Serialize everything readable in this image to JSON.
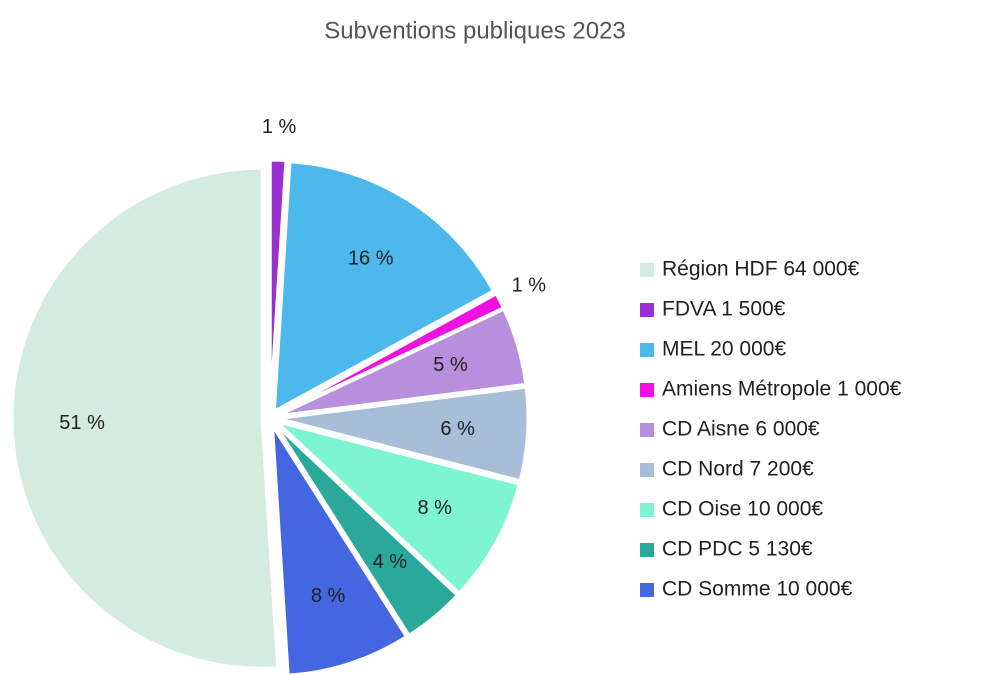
{
  "chart_data": {
    "type": "pie",
    "title": "Subventions publiques 2023",
    "categories": [
      "Région HDF 64 000€",
      "FDVA 1 500€",
      "MEL 20 000€",
      "Amiens Métropole 1 000€",
      "CD Aisne 6 000€",
      "CD Nord 7 200€",
      "CD Oise 10 000€",
      "CD PDC 5 130€",
      "CD Somme 10 000€"
    ],
    "values": [
      51,
      1,
      16,
      1,
      5,
      6,
      8,
      4,
      8
    ],
    "value_labels": [
      "51 %",
      "1 %",
      "16 %",
      "1 %",
      "5 %",
      "6 %",
      "8 %",
      "4 %",
      "8 %"
    ],
    "colors": [
      "#d4ebe0",
      "#9b30d0",
      "#4db8ec",
      "#f010e0",
      "#b88fdc",
      "#a8bed8",
      "#7cf5d0",
      "#2aa89a",
      "#4466e0"
    ],
    "legend": "right"
  }
}
